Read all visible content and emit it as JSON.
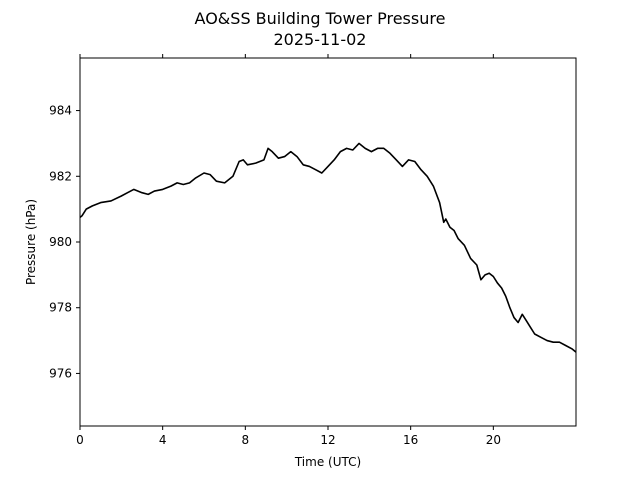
{
  "chart_data": {
    "type": "line",
    "title": "AO&SS Building Tower Pressure",
    "subtitle": "2025-11-02",
    "xlabel": "Time (UTC)",
    "ylabel": "Pressure (hPa)",
    "xlim": [
      0,
      24
    ],
    "ylim": [
      974.4,
      985.6
    ],
    "x_ticks": [
      0,
      4,
      8,
      12,
      16,
      20
    ],
    "y_ticks": [
      976,
      978,
      980,
      982,
      984
    ],
    "grid": false,
    "line_color": "#000000",
    "series": [
      {
        "x": [
          0,
          0.1,
          0.3,
          0.6,
          1.0,
          1.5,
          2.0,
          2.3,
          2.6,
          3.0,
          3.3,
          3.6,
          4.0,
          4.4,
          4.7,
          5.0,
          5.3,
          5.6,
          6.0,
          6.3,
          6.6,
          7.0,
          7.4,
          7.7,
          7.9,
          8.1,
          8.5,
          8.9,
          9.1,
          9.3,
          9.6,
          9.9,
          10.2,
          10.5,
          10.8,
          11.1,
          11.4,
          11.7,
          12.0,
          12.3,
          12.6,
          12.9,
          13.2,
          13.5,
          13.8,
          14.1,
          14.4,
          14.7,
          15.0,
          15.3,
          15.6,
          15.9,
          16.2,
          16.5,
          16.8,
          17.1,
          17.4,
          17.6,
          17.7,
          17.9,
          18.1,
          18.3,
          18.6,
          18.9,
          19.2,
          19.4,
          19.6,
          19.8,
          20.0,
          20.2,
          20.4,
          20.6,
          20.8,
          21.0,
          21.2,
          21.4,
          21.6,
          21.8,
          22.0,
          22.3,
          22.6,
          22.9,
          23.2,
          23.5,
          23.8,
          24.0
        ],
        "y": [
          980.75,
          980.8,
          981.0,
          981.1,
          981.2,
          981.25,
          981.4,
          981.5,
          981.6,
          981.5,
          981.45,
          981.55,
          981.6,
          981.7,
          981.8,
          981.75,
          981.8,
          981.95,
          982.1,
          982.05,
          981.85,
          981.8,
          982.0,
          982.45,
          982.5,
          982.35,
          982.4,
          982.5,
          982.85,
          982.75,
          982.55,
          982.6,
          982.75,
          982.6,
          982.35,
          982.3,
          982.2,
          982.1,
          982.3,
          982.5,
          982.75,
          982.85,
          982.8,
          983.0,
          982.85,
          982.75,
          982.85,
          982.85,
          982.7,
          982.5,
          982.3,
          982.5,
          982.45,
          982.2,
          982.0,
          981.7,
          981.2,
          980.6,
          980.7,
          980.45,
          980.35,
          980.1,
          979.9,
          979.5,
          979.3,
          978.85,
          979.0,
          979.05,
          978.95,
          978.75,
          978.6,
          978.35,
          978.0,
          977.7,
          977.55,
          977.8,
          977.6,
          977.4,
          977.2,
          977.1,
          977.0,
          976.95,
          976.95,
          976.85,
          976.75,
          976.65
        ]
      }
    ]
  }
}
